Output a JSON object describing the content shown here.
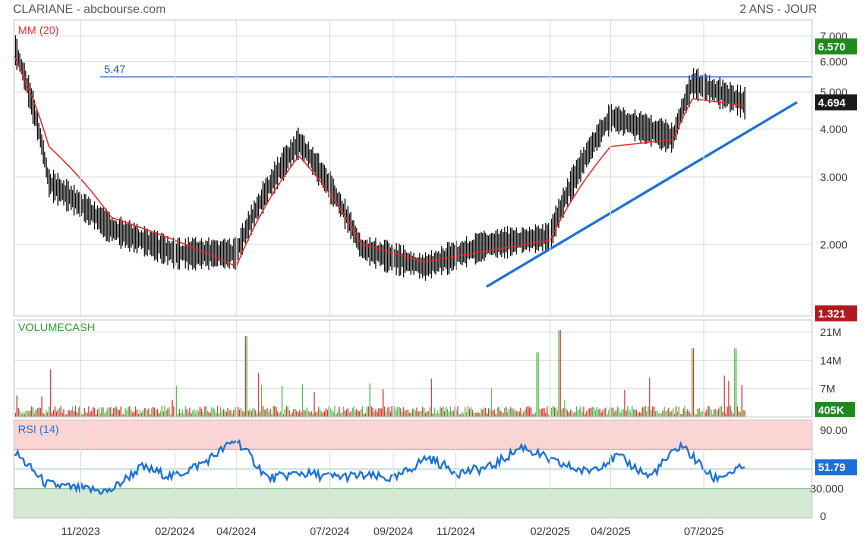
{
  "header": {
    "left": "CLARIANE - abcbourse.com",
    "right": "2 ANS - JOUR"
  },
  "colors": {
    "price": "#000000",
    "ma": "#e8262b",
    "support": "#1a6fd6",
    "resistance": "#1a5fc4",
    "rsi": "#1a6fd6",
    "vol_up": "#4fb84f",
    "vol_down": "#d6302b",
    "last_badge": "#1a1a1a",
    "high_badge": "#1e8a1e",
    "low_badge": "#b0191e",
    "rsi_over": "#fbd4d4",
    "rsi_under": "#d4ead4",
    "grid": "#e0e0e0",
    "panel_label": "#e8262b",
    "volume_label": "#2aa02a",
    "rsi_label": "#1a6fd6"
  },
  "chart_data": [
    {
      "type": "line",
      "panel": "price",
      "indicator_label": "MM (20)",
      "log_scale": true,
      "y_ticks": [
        "7.000",
        "6.000",
        "5.000",
        "4.000",
        "3.000",
        "2.000"
      ],
      "ylim": [
        1.3,
        7.7
      ],
      "x_ticks": [
        "11/2023",
        "02/2024",
        "04/2024",
        "07/2024",
        "09/2024",
        "11/2024",
        "02/2025",
        "04/2025",
        "07/2025"
      ],
      "x_dates": [
        "2023-08-28",
        "2023-10-01",
        "2023-12-01",
        "2024-02-01",
        "2024-04-01",
        "2024-06-01",
        "2024-08-01",
        "2024-10-01",
        "2024-12-01",
        "2025-02-01",
        "2025-04-01",
        "2025-06-01",
        "2025-06-20",
        "2025-08-10"
      ],
      "close": [
        6.6,
        2.9,
        2.2,
        1.9,
        1.9,
        3.7,
        1.95,
        1.75,
        2.0,
        2.1,
        4.3,
        3.8,
        5.3,
        4.694
      ],
      "ma20": [
        6.2,
        3.6,
        2.35,
        2.05,
        1.75,
        3.4,
        2.0,
        1.8,
        1.92,
        2.05,
        3.6,
        3.75,
        4.8,
        4.6
      ],
      "resistance": {
        "label": "5.47",
        "value": 5.47,
        "from": "2023-11-20",
        "to": "2025-09-01"
      },
      "support": {
        "from_date": "2024-12-01",
        "from_value": 1.55,
        "to_date": "2025-09-30",
        "to_value": 4.7
      },
      "badges": {
        "high": "6.570",
        "last": "4.694",
        "low": "1.321"
      }
    },
    {
      "type": "bar",
      "panel": "volume",
      "indicator_label": "VOLUMECASH",
      "y_ticks": [
        "21M",
        "14M",
        "7M"
      ],
      "ylim": [
        0,
        24
      ],
      "unit": "M",
      "values_up_down": "mixed",
      "last_value": "405K",
      "peaks": [
        {
          "date": "2024-04-10",
          "value": 20
        },
        {
          "date": "2025-02-10",
          "value": 21.5
        },
        {
          "date": "2025-01-20",
          "value": 16
        },
        {
          "date": "2025-06-20",
          "value": 17
        },
        {
          "date": "2025-08-01",
          "value": 17
        }
      ]
    },
    {
      "type": "line",
      "panel": "rsi",
      "indicator_label": "RSI (14)",
      "y_ticks": [
        "90.00",
        "30.000",
        "0"
      ],
      "ylim": [
        0,
        100
      ],
      "overbought": 70,
      "oversold": 30,
      "last_value": "51.79",
      "series": [
        68,
        35,
        30,
        27,
        52,
        42,
        57,
        80,
        40,
        46,
        42,
        43,
        40,
        62,
        46,
        52,
        73,
        57,
        47,
        63,
        42,
        75,
        40,
        51.79
      ]
    }
  ]
}
